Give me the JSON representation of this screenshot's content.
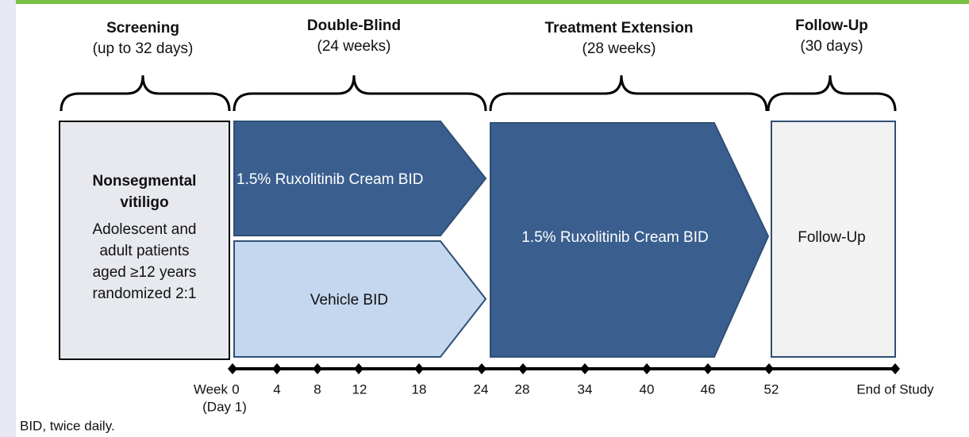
{
  "phases": [
    {
      "title": "Screening",
      "subtitle": "(up to 32 days)"
    },
    {
      "title": "Double-Blind",
      "subtitle": "(24 weeks)"
    },
    {
      "title": "Treatment Extension",
      "subtitle": "(28 weeks)"
    },
    {
      "title": "Follow-Up",
      "subtitle": "(30 days)"
    }
  ],
  "screening_box": {
    "title": "Nonsegmental vitiligo",
    "title_lines": [
      "Nonsegmental",
      "vitiligo"
    ],
    "lines": [
      "Adolescent and",
      "adult patients",
      "aged ≥12 years",
      "randomized 2:1"
    ]
  },
  "arms": {
    "active": "1.5% Ruxolitinib Cream BID",
    "vehicle": "Vehicle BID",
    "extension": "1.5% Ruxolitinib Cream BID",
    "follow_up": "Follow-Up"
  },
  "timeline": {
    "prefix": "Week",
    "day_note": "(Day 1)",
    "ticks": [
      "0",
      "4",
      "8",
      "12",
      "18",
      "24",
      "28",
      "34",
      "40",
      "46",
      "52",
      "End of Study"
    ]
  },
  "footnote": "BID, twice daily."
}
